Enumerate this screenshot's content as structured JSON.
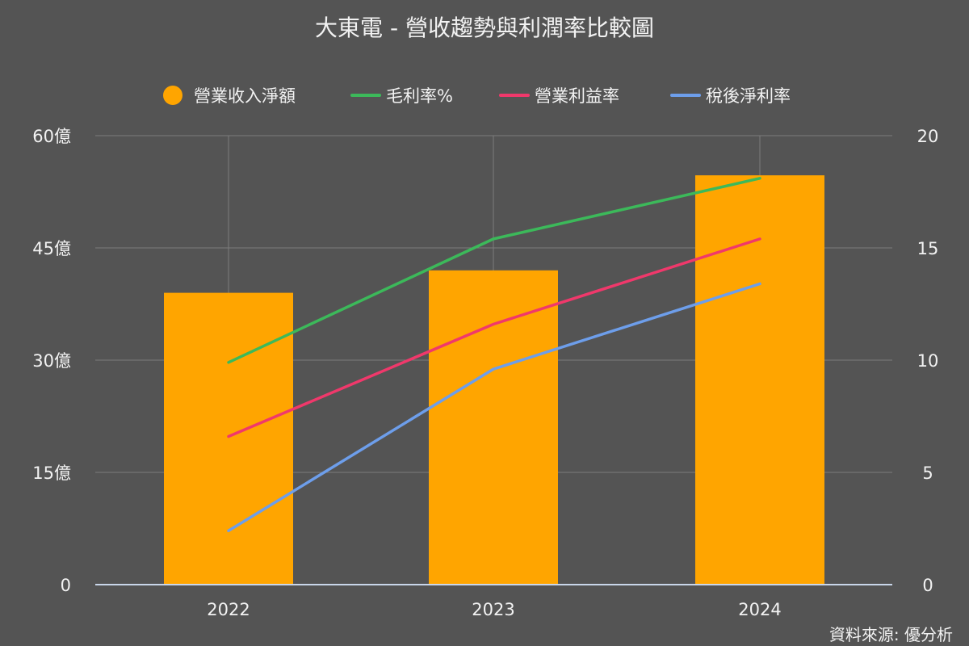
{
  "colors": {
    "background": "#545454",
    "text": "#f2f2f2",
    "grid": "#7c7c7c",
    "axis_line": "#c9d6ea",
    "bar": "#ffa500",
    "gross_margin": "#3cb95a",
    "operating_margin": "#f0386b",
    "net_margin": "#6d9eeb"
  },
  "chart_data": {
    "type": "bar",
    "title": "大東電 - 營收趨勢與利潤率比較圖",
    "source": "資料來源: 優分析",
    "categories": [
      "2022",
      "2023",
      "2024"
    ],
    "legend_position": "top",
    "grid": true,
    "y_left": {
      "ticks": [
        "0",
        "15億",
        "30億",
        "45億",
        "60億"
      ],
      "tick_values": [
        0,
        15,
        30,
        45,
        60
      ],
      "range": [
        0,
        60
      ],
      "unit": "億"
    },
    "y_right": {
      "ticks": [
        "0",
        "5",
        "10",
        "15",
        "20"
      ],
      "tick_values": [
        0,
        5,
        10,
        15,
        20
      ],
      "range": [
        0,
        20
      ]
    },
    "series": [
      {
        "name": "營業收入淨額",
        "type": "bar",
        "axis": "left",
        "color": "#ffa500",
        "values": [
          39.0,
          42.0,
          54.7
        ]
      },
      {
        "name": "毛利率%",
        "type": "line",
        "axis": "right",
        "color": "#3cb95a",
        "values": [
          9.9,
          15.4,
          18.1
        ]
      },
      {
        "name": "營業利益率",
        "type": "line",
        "axis": "right",
        "color": "#f0386b",
        "values": [
          6.6,
          11.6,
          15.4
        ]
      },
      {
        "name": "稅後淨利率",
        "type": "line",
        "axis": "right",
        "color": "#6d9eeb",
        "values": [
          2.4,
          9.6,
          13.4
        ]
      }
    ]
  }
}
